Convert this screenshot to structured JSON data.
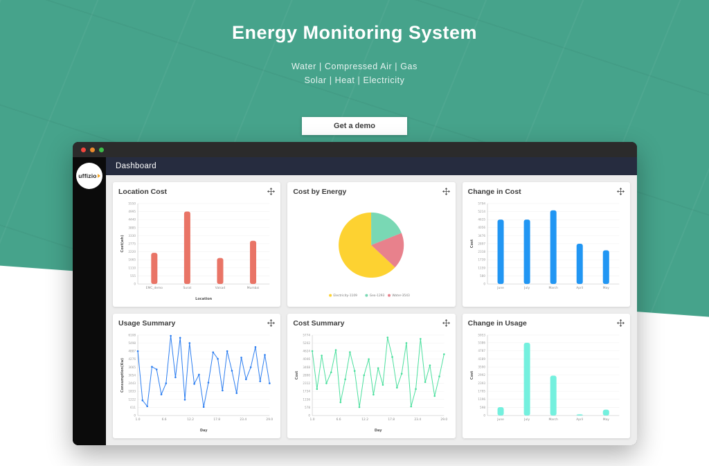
{
  "hero": {
    "title": "Energy Monitoring System",
    "subtitle_line1": "Water | Compressed Air | Gas",
    "subtitle_line2": "Solar | Heat | Electricity",
    "cta_label": "Get a demo"
  },
  "window": {
    "nav_title": "Dashboard",
    "logo_text": "uffizio"
  },
  "theme": {
    "hero_background": "#46a38b",
    "navbar_color": "#262c3f",
    "sidebar_color": "#0b0b0b",
    "traffic_lights": [
      "#f2463d",
      "#e98b2d",
      "#3dbd4a"
    ]
  },
  "chart_data": [
    {
      "type": "bar",
      "title": "Location Cost",
      "categories": [
        "EMC_demo",
        "Surat",
        "Valsad",
        "Mumbai"
      ],
      "values": [
        2150,
        4995,
        1790,
        2980
      ],
      "yticks": [
        0,
        555,
        1110,
        1665,
        2220,
        2775,
        3330,
        3885,
        4440,
        4995,
        5550
      ],
      "ylim": [
        0,
        5550
      ],
      "ylabel": "Cost(wh)",
      "xlabel": "Location",
      "color": "#e97466"
    },
    {
      "type": "pie",
      "title": "Cost by Energy",
      "start_deg": 133,
      "slices": [
        {
          "label": "Electricity-1109",
          "percent": 63,
          "color": "#fdd231"
        },
        {
          "label": "Geo-1293",
          "percent": 19,
          "color": "#79d8b4"
        },
        {
          "label": "Water-3543",
          "percent": 18,
          "color": "#e8818c"
        }
      ],
      "legend_position": "bottom"
    },
    {
      "type": "bar",
      "title": "Change in Cost",
      "categories": [
        "June",
        "July",
        "March",
        "April",
        "May"
      ],
      "values": [
        4635,
        4635,
        5300,
        2897,
        2420
      ],
      "yticks": [
        0,
        580,
        1159,
        1739,
        2318,
        2897,
        3476,
        4056,
        4635,
        5214,
        5794
      ],
      "ylim": [
        0,
        5794
      ],
      "ylabel": "Cost",
      "xlabel": "",
      "color": "#2196f3"
    },
    {
      "type": "line",
      "title": "Usage Summary",
      "x_range": [
        1,
        29
      ],
      "xticks": [
        1.0,
        6.6,
        12.2,
        17.8,
        23.4,
        29.0
      ],
      "values": [
        4887,
        1150,
        700,
        3700,
        3500,
        1600,
        2443,
        6050,
        2900,
        5900,
        1200,
        5500,
        2400,
        3100,
        650,
        2500,
        4800,
        4300,
        1900,
        4887,
        3400,
        1700,
        4400,
        2750,
        3665,
        5200,
        2600,
        4600,
        2443
      ],
      "yticks": [
        0,
        611,
        1222,
        1833,
        2443,
        3054,
        3665,
        4276,
        4887,
        5498,
        6108
      ],
      "ylim": [
        0,
        6108
      ],
      "ylabel": "Consumption(Kw)",
      "xlabel": "Day",
      "color": "#2b7df0"
    },
    {
      "type": "line",
      "title": "Cost Summary",
      "x_range": [
        1,
        29
      ],
      "xticks": [
        1.0,
        6.6,
        12.2,
        17.8,
        23.4,
        29.0
      ],
      "values": [
        4624,
        1900,
        4300,
        2312,
        3100,
        4700,
        950,
        2600,
        4550,
        3200,
        600,
        2890,
        4046,
        1500,
        3400,
        2200,
        5600,
        4200,
        2000,
        3000,
        5202,
        650,
        1900,
        5500,
        2400,
        3600,
        1400,
        2800,
        4400
      ],
      "yticks": [
        0,
        578,
        1156,
        1734,
        2312,
        2890,
        3468,
        4046,
        4624,
        5202,
        5774
      ],
      "ylim": [
        0,
        5774
      ],
      "ylabel": "Cost",
      "xlabel": "Day",
      "color": "#4adf9d"
    },
    {
      "type": "bar",
      "title": "Change in Usage",
      "categories": [
        "June",
        "July",
        "March",
        "April",
        "May"
      ],
      "values": [
        620,
        5386,
        2950,
        90,
        430
      ],
      "yticks": [
        0,
        598,
        1196,
        1795,
        2393,
        2992,
        3590,
        4189,
        4787,
        5386,
        5953
      ],
      "ylim": [
        0,
        5953
      ],
      "ylabel": "Cost",
      "xlabel": "",
      "color": "#74f0de"
    }
  ]
}
